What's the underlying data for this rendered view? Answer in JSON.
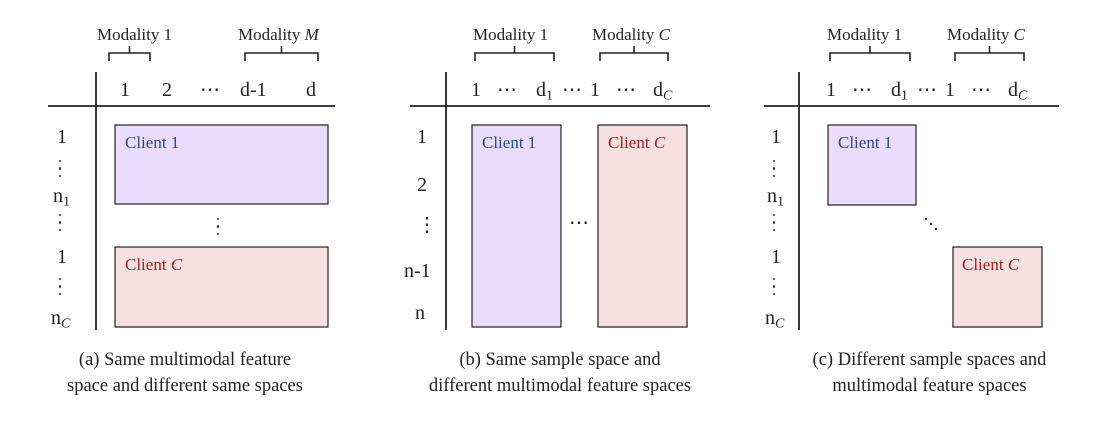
{
  "colors": {
    "purple_fill": "#ecdcfb",
    "pink_fill": "#f7e1e0",
    "client_1_text": "#1f4e8c",
    "client_c_text": "#a0201f",
    "line": "#222222"
  },
  "panel_a": {
    "modality_1": "Modality 1",
    "modality_m": "Modality ",
    "modality_m_var": "M",
    "cols": [
      "1",
      "2",
      "⋯",
      "d-1",
      "d"
    ],
    "rows": {
      "r1": "1",
      "rn1": "n",
      "rn1_sub": "1",
      "r1b": "1",
      "rnc": "n",
      "rnc_sub": "C"
    },
    "client_1": "Client 1",
    "client_c": "Client ",
    "client_c_var": "C",
    "caption_line1": "(a) Same multimodal feature",
    "caption_line2": "space and different same spaces"
  },
  "panel_b": {
    "modality_1": "Modality 1",
    "modality_c": "Modality ",
    "modality_c_var": "C",
    "cols": {
      "c1": "1",
      "dots1": "⋯",
      "d1": "d",
      "d1_sub": "1",
      "mid": "⋯",
      "c1b": "1",
      "dots2": "⋯",
      "dc": "d",
      "dc_sub": "C"
    },
    "rows": [
      "1",
      "2",
      "⋮",
      "n-1",
      "n"
    ],
    "client_1": "Client 1",
    "client_c": "Client ",
    "client_c_var": "C",
    "between": "⋯",
    "caption_line1": "(b) Same sample space and",
    "caption_line2": "different multimodal feature spaces"
  },
  "panel_c": {
    "modality_1": "Modality 1",
    "modality_c": "Modality ",
    "modality_c_var": "C",
    "cols": {
      "c1": "1",
      "dots1": "⋯",
      "d1": "d",
      "d1_sub": "1",
      "mid": "⋯",
      "c1b": "1",
      "dots2": "⋯",
      "dc": "d",
      "dc_sub": "C"
    },
    "rows": {
      "r1": "1",
      "rn1": "n",
      "rn1_sub": "1",
      "r1b": "1",
      "rnc": "n",
      "rnc_sub": "C"
    },
    "client_1": "Client 1",
    "client_c": "Client ",
    "client_c_var": "C",
    "caption_line1": "(c) Different sample spaces and",
    "caption_line2": "multimodal feature spaces"
  }
}
